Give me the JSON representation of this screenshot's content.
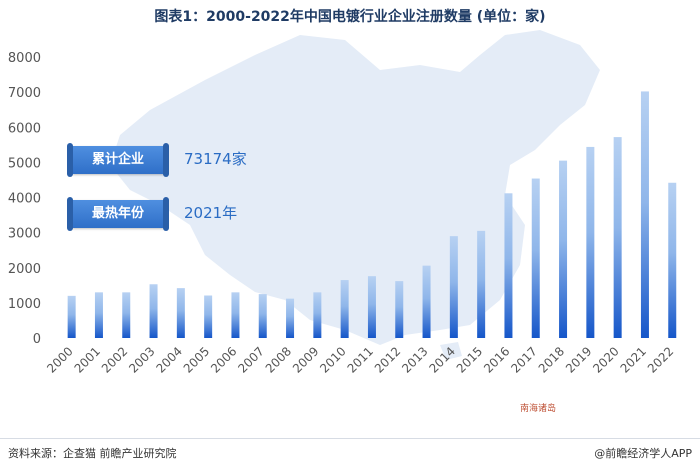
{
  "title": "图表1：2000-2022年中国电镀行业企业注册数量 (单位：家)",
  "callouts": [
    {
      "label": "累计企业",
      "value": "73174家"
    },
    {
      "label": "最热年份",
      "value": "2021年"
    }
  ],
  "map_label": "南海诸岛",
  "footer": {
    "source": "资料来源：企查猫 前瞻产业研究院",
    "brand": "@前瞻经济学人APP"
  },
  "colors": {
    "bar_top": "#b7d1f2",
    "bar_bottom": "#1556c9",
    "map": "#e4ecf7",
    "callout": "#3b7fd6"
  },
  "chart_data": {
    "type": "bar",
    "title": "图表1：2000-2022年中国电镀行业企业注册数量 (单位：家)",
    "xlabel": "",
    "ylabel": "",
    "unit": "家",
    "ylim": [
      0,
      8000
    ],
    "yticks": [
      0,
      1000,
      2000,
      3000,
      4000,
      5000,
      6000,
      7000,
      8000
    ],
    "grid": false,
    "categories": [
      "2000",
      "2001",
      "2002",
      "2003",
      "2004",
      "2005",
      "2006",
      "2007",
      "2008",
      "2009",
      "2010",
      "2011",
      "2012",
      "2013",
      "2014",
      "2015",
      "2016",
      "2017",
      "2018",
      "2019",
      "2020",
      "2021",
      "2022"
    ],
    "values": [
      1200,
      1300,
      1300,
      1530,
      1420,
      1210,
      1300,
      1250,
      1120,
      1300,
      1650,
      1760,
      1620,
      2060,
      2900,
      3050,
      4120,
      4540,
      5050,
      5440,
      5720,
      7020,
      4420
    ]
  }
}
